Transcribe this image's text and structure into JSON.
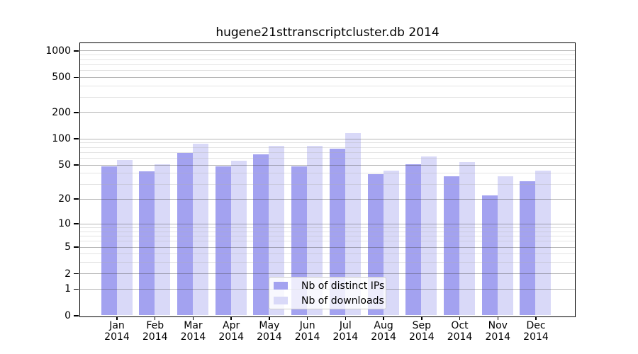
{
  "title": "hugene21sttranscriptcluster.db 2014",
  "chart_data": {
    "type": "bar",
    "title": "hugene21sttranscriptcluster.db 2014",
    "scale": "log10(1+x)",
    "grid": "on",
    "legend_position": "bottom-center-inside",
    "year": "2014",
    "categories": [
      "Jan",
      "Feb",
      "Mar",
      "Apr",
      "May",
      "Jun",
      "Jul",
      "Aug",
      "Sep",
      "Oct",
      "Nov",
      "Dec"
    ],
    "series": [
      {
        "name": "Nb of distinct IPs",
        "color": "#a3a2f0",
        "values": [
          48,
          42,
          68,
          48,
          66,
          48,
          76,
          39,
          51,
          37,
          22,
          32
        ]
      },
      {
        "name": "Nb of downloads",
        "color": "#d9d9f8",
        "values": [
          57,
          51,
          88,
          56,
          83,
          83,
          116,
          43,
          62,
          54,
          37,
          43
        ]
      }
    ],
    "y_ticks": [
      0,
      1,
      2,
      5,
      10,
      20,
      50,
      100,
      200,
      500,
      1000
    ],
    "y_minor_ticks": [
      3,
      4,
      6,
      7,
      8,
      9,
      30,
      40,
      60,
      70,
      80,
      90,
      300,
      400,
      600,
      700,
      800,
      900
    ],
    "ylim": [
      0,
      1000
    ],
    "xlabel": "",
    "ylabel": ""
  }
}
